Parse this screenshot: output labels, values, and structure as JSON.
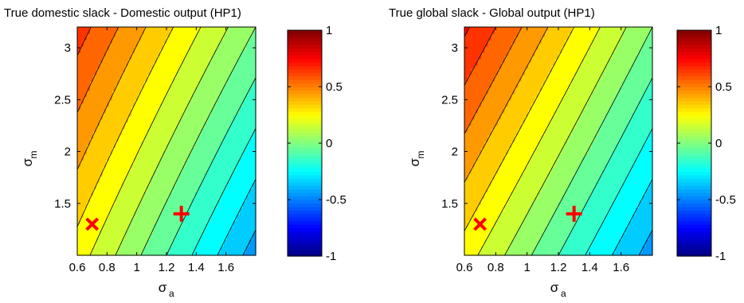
{
  "chart_data": [
    {
      "type": "contour",
      "title": "True domestic slack - Domestic output (HP1)",
      "xlabel": "σ",
      "xlabel_sub": "a",
      "ylabel": "σ",
      "ylabel_sub": "m",
      "xlim": [
        0.6,
        1.8
      ],
      "ylim": [
        1.0,
        3.2
      ],
      "x_ticks": [
        0.6,
        0.8,
        1.0,
        1.2,
        1.4,
        1.6
      ],
      "x_tick_labels": [
        "0.6",
        "0.8",
        "1",
        "1.2",
        "1.4",
        "1.6"
      ],
      "y_ticks": [
        1.5,
        2.0,
        2.5,
        3.0
      ],
      "y_tick_labels": [
        "1.5",
        "2",
        "2.5",
        "3"
      ],
      "colormap": "jet",
      "clim": [
        -1,
        1
      ],
      "colorbar_ticks": [
        -1,
        -0.5,
        0,
        0.5,
        1
      ],
      "colorbar_tick_labels": [
        "-1",
        "-0.5",
        "0",
        "0.5",
        "1"
      ],
      "contour_step": 0.1,
      "surface_samples": {
        "corners": [
          {
            "x": 0.6,
            "y": 3.2,
            "z": 0.65
          },
          {
            "x": 1.8,
            "y": 1.0,
            "z": -0.45
          },
          {
            "x": 0.6,
            "y": 1.0,
            "z": 0.25
          },
          {
            "x": 1.8,
            "y": 3.2,
            "z": 0.0
          }
        ]
      },
      "markers": [
        {
          "symbol": "x",
          "x": 0.7,
          "y": 1.3,
          "color": "#ff0000"
        },
        {
          "symbol": "+",
          "x": 1.3,
          "y": 1.4,
          "color": "#ff0000"
        }
      ]
    },
    {
      "type": "contour",
      "title": "True global slack - Global output (HP1)",
      "xlabel": "σ",
      "xlabel_sub": "a",
      "ylabel": "σ",
      "ylabel_sub": "m",
      "xlim": [
        0.6,
        1.8
      ],
      "ylim": [
        1.0,
        3.2
      ],
      "x_ticks": [
        0.6,
        0.8,
        1.0,
        1.2,
        1.4,
        1.6
      ],
      "x_tick_labels": [
        "0.6",
        "0.8",
        "1",
        "1.2",
        "1.4",
        "1.6"
      ],
      "y_ticks": [
        1.5,
        2.0,
        2.5,
        3.0
      ],
      "y_tick_labels": [
        "1.5",
        "2",
        "2.5",
        "3"
      ],
      "colormap": "jet",
      "clim": [
        -1,
        1
      ],
      "colorbar_ticks": [
        -1,
        -0.5,
        0,
        0.5,
        1
      ],
      "colorbar_tick_labels": [
        "-1",
        "-0.5",
        "0",
        "0.5",
        "1"
      ],
      "contour_step": 0.1,
      "surface_samples": {
        "corners": [
          {
            "x": 0.6,
            "y": 3.2,
            "z": 0.72
          },
          {
            "x": 1.8,
            "y": 1.0,
            "z": -0.45
          },
          {
            "x": 0.6,
            "y": 1.0,
            "z": 0.25
          },
          {
            "x": 1.8,
            "y": 3.2,
            "z": 0.0
          }
        ]
      },
      "markers": [
        {
          "symbol": "x",
          "x": 0.7,
          "y": 1.3,
          "color": "#ff0000"
        },
        {
          "symbol": "+",
          "x": 1.3,
          "y": 1.4,
          "color": "#ff0000"
        }
      ]
    }
  ]
}
